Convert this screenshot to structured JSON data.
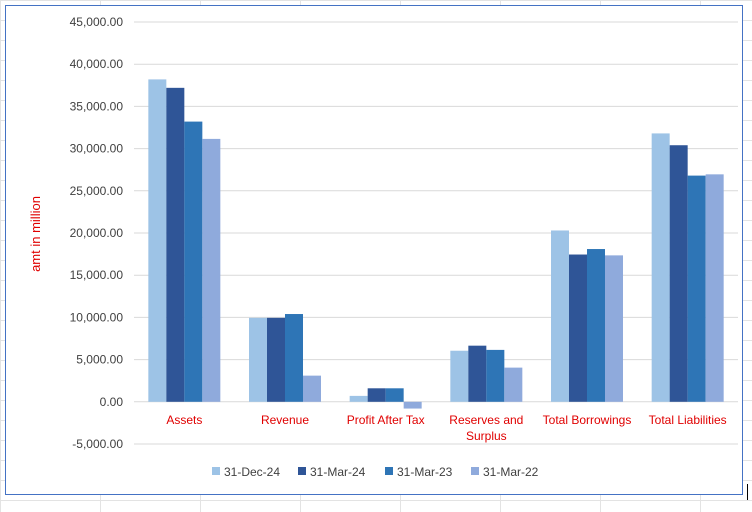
{
  "chart_data": {
    "type": "bar",
    "title": "",
    "xlabel": "",
    "ylabel": "amt in million",
    "ylim": [
      -5000,
      45000
    ],
    "ytick_step": 5000,
    "ytick_labels": [
      "-5,000.00",
      "0.00",
      "5,000.00",
      "10,000.00",
      "15,000.00",
      "20,000.00",
      "25,000.00",
      "30,000.00",
      "35,000.00",
      "40,000.00",
      "45,000.00"
    ],
    "grid": true,
    "legend_position": "bottom",
    "categories": [
      "Assets",
      "Revenue",
      "Profit After Tax",
      "Reserves and Surplus",
      "Total Borrowings",
      "Total Liabilities"
    ],
    "series": [
      {
        "name": "31-Dec-24",
        "color": "#9dc3e6",
        "values": [
          38200,
          9950,
          700,
          6050,
          20300,
          31800
        ]
      },
      {
        "name": "31-Mar-24",
        "color": "#2f5597",
        "values": [
          37200,
          9950,
          1600,
          6650,
          17450,
          30400
        ]
      },
      {
        "name": "31-Mar-23",
        "color": "#2e75b6",
        "values": [
          33200,
          10400,
          1600,
          6150,
          18100,
          26800
        ]
      },
      {
        "name": "31-Mar-22",
        "color": "#8faadc",
        "values": [
          31150,
          3100,
          -800,
          4050,
          17350,
          26950
        ]
      }
    ]
  }
}
